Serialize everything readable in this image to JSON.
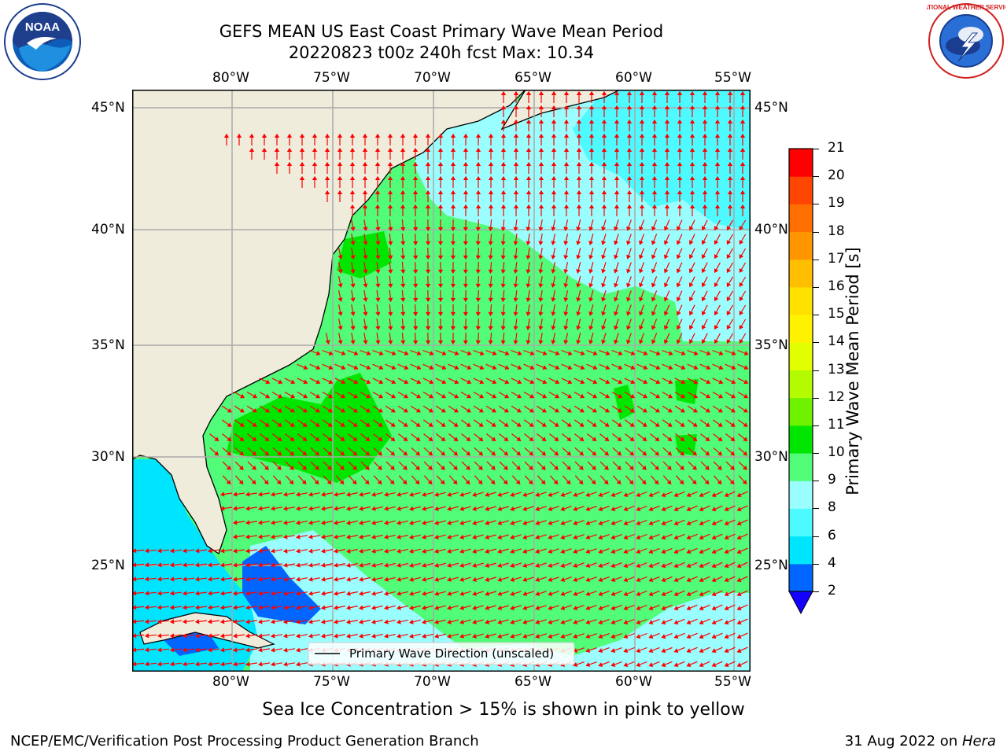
{
  "header": {
    "title_line1": "GEFS MEAN US East Coast Primary Wave Mean Period",
    "title_line2": "20220823 t00z 240h fcst   Max: 10.34"
  },
  "logos": {
    "left": {
      "name": "noaa-logo",
      "text": "NOAA"
    },
    "right": {
      "name": "nws-logo",
      "text": "NATIONAL WEATHER SERVICE"
    }
  },
  "map": {
    "lon_labels": [
      "80°W",
      "75°W",
      "70°W",
      "65°W",
      "60°W",
      "55°W"
    ],
    "lat_labels": [
      "45°N",
      "40°N",
      "35°N",
      "30°N",
      "25°N"
    ],
    "legend_label": "Primary Wave Direction (unscaled)",
    "arrow_color": "#ff0000",
    "land_color": "#efecdc"
  },
  "colorbar": {
    "label": "Primary Wave Mean Period [s]",
    "ticks": [
      "2",
      "4",
      "6",
      "8",
      "9",
      "10",
      "11",
      "12",
      "13",
      "14",
      "15",
      "16",
      "17",
      "18",
      "19",
      "20",
      "21"
    ],
    "colors": [
      "#0066ff",
      "#00e5ff",
      "#4dfaff",
      "#9afeff",
      "#50fc78",
      "#00e600",
      "#6ef200",
      "#b4fa00",
      "#e1ff00",
      "#fff200",
      "#ffe100",
      "#ffbe00",
      "#ff9600",
      "#ff6e00",
      "#ff4600",
      "#ff0000"
    ],
    "under_color": "#1400ff"
  },
  "footer": {
    "note": "Sea Ice Concentration > 15% is shown in pink to yellow",
    "credit": "NCEP/EMC/Verification Post Processing Product Generation Branch",
    "date": "31 Aug 2022 on ",
    "machine": "Hera"
  }
}
